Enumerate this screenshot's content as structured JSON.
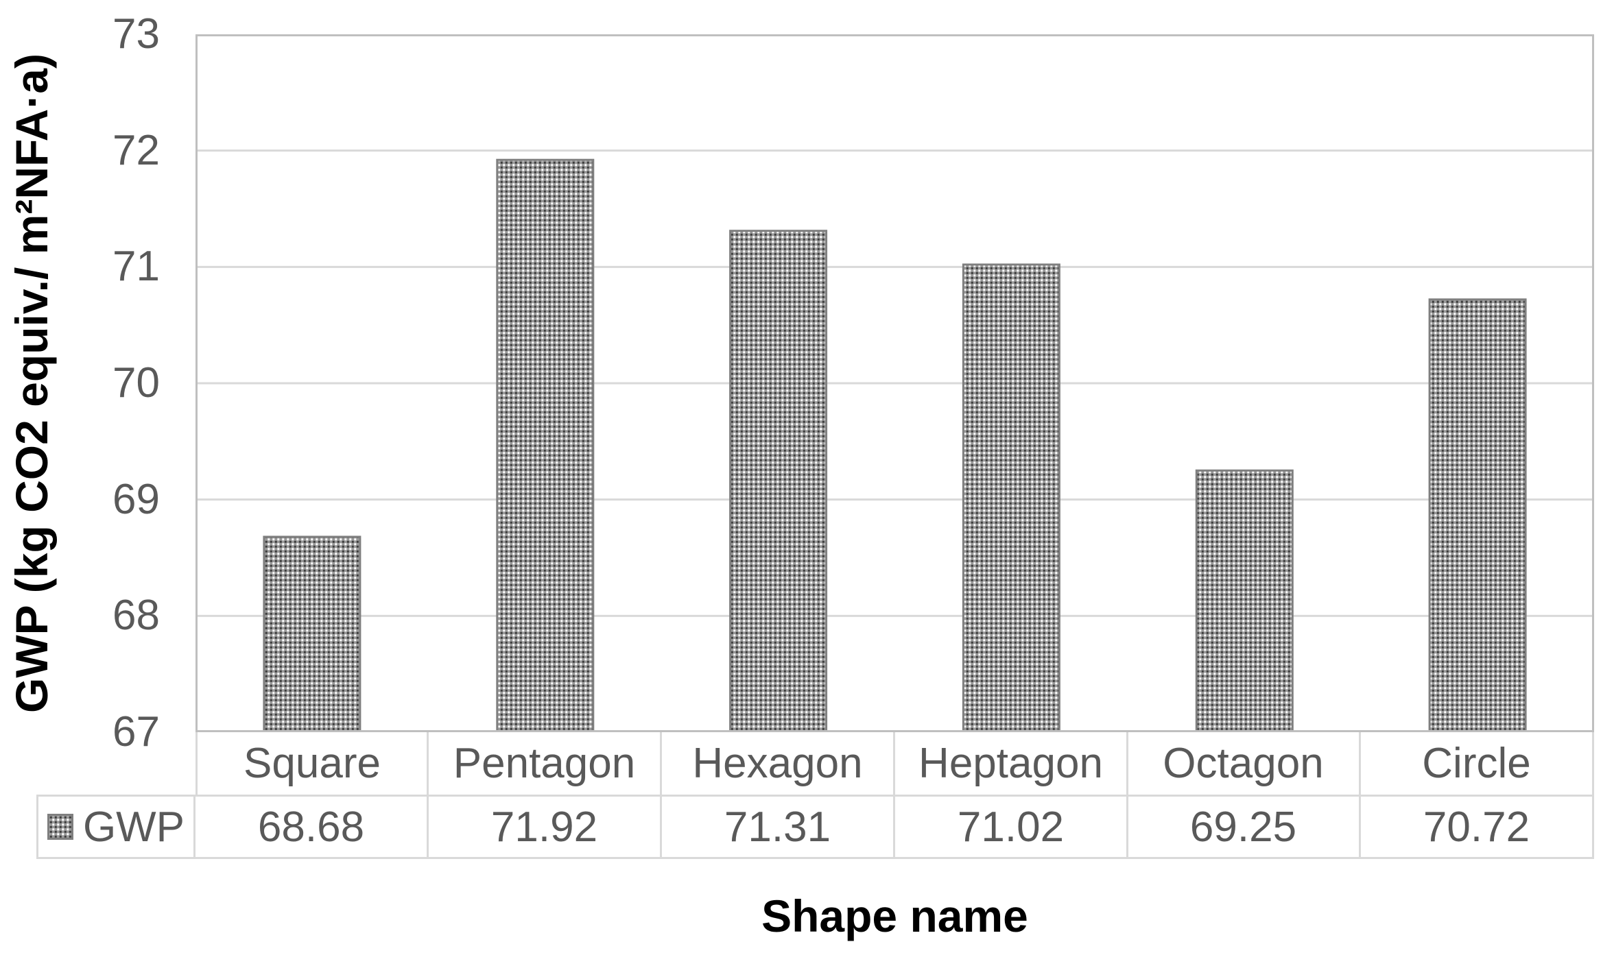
{
  "figure": {
    "y_axis_title": "GWP (kg CO2 equiv./ m²NFA·a)",
    "x_axis_title": "Shape name"
  },
  "legend": {
    "label": "GWP",
    "swatch_icon": "hatched-pattern-swatch"
  },
  "chart_data": {
    "type": "bar",
    "title": "",
    "categories": [
      "Square",
      "Pentagon",
      "Hexagon",
      "Heptagon",
      "Octagon",
      "Circle"
    ],
    "series": [
      {
        "name": "GWP",
        "values": [
          68.68,
          71.92,
          71.31,
          71.02,
          69.25,
          70.72
        ]
      }
    ],
    "xlabel": "Shape name",
    "ylabel": "GWP (kg CO2 equiv./ m²NFA·a)",
    "ylim": [
      67,
      73
    ],
    "yticks": [
      67,
      68,
      69,
      70,
      71,
      72,
      73
    ],
    "grid": true,
    "legend_position": "data-table-left",
    "has_data_table": true,
    "bar_fill_style": "dotted-diamond-hatch"
  },
  "colors": {
    "tick_text": "#595959",
    "axis_title_text": "#000000",
    "gridline": "#d9d9d9",
    "plot_border": "#bfbfbf",
    "table_border": "#d9d9d9",
    "bar_stroke": "#7f7f7f",
    "bar_pattern_bg": "#999999",
    "bar_pattern_light": "#ffffff",
    "bar_pattern_dark": "#3d3d3d"
  }
}
